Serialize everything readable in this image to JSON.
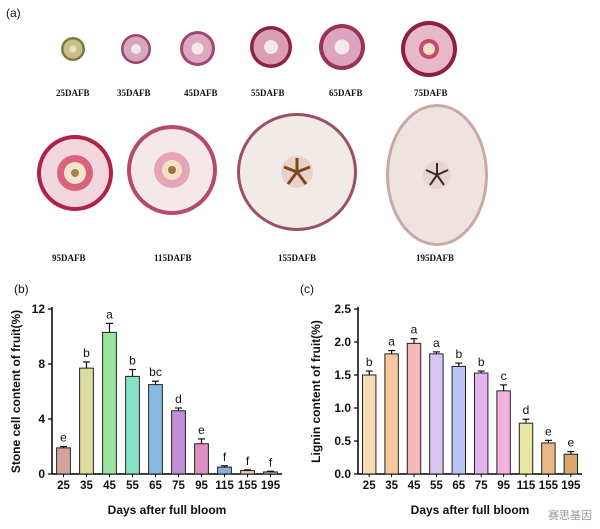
{
  "panel_labels": {
    "a": "(a)",
    "b": "(b)",
    "c": "(c)"
  },
  "fruit_row1": [
    {
      "label": "25DAFB",
      "flesh": "#c8c089",
      "skin": "#7d7a3f"
    },
    {
      "label": "35DAFB",
      "flesh": "#d7a8bd",
      "skin": "#9e4370"
    },
    {
      "label": "45DAFB",
      "flesh": "#dba9c2",
      "skin": "#a1466f"
    },
    {
      "label": "55DAFB",
      "flesh": "#d79eb4",
      "skin": "#8c2346"
    },
    {
      "label": "65DAFB",
      "flesh": "#dca5bd",
      "skin": "#9b3258"
    },
    {
      "label": "75DAFB",
      "flesh": "#e7b8c7",
      "skin": "#8e1f3e"
    }
  ],
  "fruit_row2": [
    {
      "label": "95DAFB",
      "flesh": "#f1d6de",
      "skin": "#b02245"
    },
    {
      "label": "115DAFB",
      "flesh": "#f4e8ea",
      "skin": "#b54b68"
    },
    {
      "label": "155DAFB",
      "flesh": "#f1ebe7",
      "skin": "#9b5162"
    },
    {
      "label": "195DAFB",
      "flesh": "#efe3df",
      "skin": "#c9a9a7"
    }
  ],
  "watermark": "赛思基因",
  "chart_data": [
    {
      "type": "bar",
      "categories": [
        "25",
        "35",
        "45",
        "55",
        "65",
        "75",
        "95",
        "115",
        "155",
        "195"
      ],
      "values": [
        1.9,
        7.7,
        10.3,
        7.1,
        6.5,
        4.6,
        2.2,
        0.5,
        0.25,
        0.15
      ],
      "errors": [
        0.1,
        0.45,
        0.65,
        0.5,
        0.25,
        0.2,
        0.35,
        0.1,
        0.05,
        0.05
      ],
      "letters": [
        "e",
        "b",
        "a",
        "b",
        "bc",
        "d",
        "e",
        "f",
        "f",
        "f"
      ],
      "colors": [
        "#d3a39b",
        "#d9dc9c",
        "#9be39e",
        "#86e1c7",
        "#86b8e0",
        "#c08fd7",
        "#de8fc1",
        "#8ab1dd",
        "#f2c9a7",
        "#cfb3de"
      ],
      "xlabel": "Days after full bloom",
      "ylabel": "Stone cell content of fruit(%)",
      "ylim": [
        0,
        12
      ],
      "yticks": [
        0,
        4,
        8,
        12
      ],
      "ytick_labels": [
        "0",
        "4",
        "8",
        "12"
      ]
    },
    {
      "type": "bar",
      "categories": [
        "25",
        "35",
        "45",
        "55",
        "65",
        "75",
        "95",
        "115",
        "155",
        "195"
      ],
      "values": [
        1.5,
        1.82,
        1.98,
        1.82,
        1.63,
        1.53,
        1.26,
        0.77,
        0.47,
        0.3
      ],
      "errors": [
        0.06,
        0.05,
        0.07,
        0.03,
        0.05,
        0.03,
        0.09,
        0.06,
        0.04,
        0.04
      ],
      "letters": [
        "b",
        "a",
        "a",
        "a",
        "b",
        "b",
        "c",
        "d",
        "e",
        "e"
      ],
      "colors": [
        "#f6ddb1",
        "#f6c8a0",
        "#f5b7ba",
        "#d7c6f3",
        "#b9c4f4",
        "#e3b2ef",
        "#f2b3e1",
        "#e8e6a6",
        "#e8b785",
        "#d8a56b"
      ],
      "xlabel": "Days after full bloom",
      "ylabel": "Lignin content of fruit(%)",
      "ylim": [
        0,
        2.5
      ],
      "yticks": [
        0,
        0.5,
        1.0,
        1.5,
        2.0,
        2.5
      ],
      "ytick_labels": [
        "0.0",
        "0.5",
        "1.0",
        "1.5",
        "2.0",
        "2.5"
      ]
    }
  ]
}
